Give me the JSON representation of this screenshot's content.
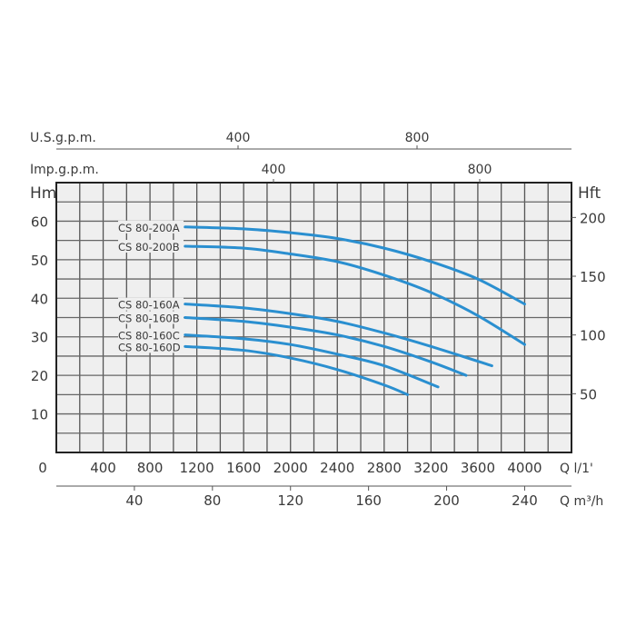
{
  "chart_data": {
    "type": "line",
    "title": "",
    "xlabel": "Q l/1'",
    "ylabel": "Hm",
    "y2label": "Hft",
    "xlim": [
      0,
      4400
    ],
    "ylim": [
      0,
      70
    ],
    "grid": true,
    "x_ticks": [
      0,
      400,
      800,
      1200,
      1600,
      2000,
      2400,
      2800,
      3200,
      3600,
      4000
    ],
    "x_tick_labels": [
      "0",
      "400",
      "800",
      "1200",
      "1600",
      "2000",
      "2400",
      "2800",
      "3200",
      "3600",
      "4000"
    ],
    "y_ticks": [
      10,
      20,
      30,
      40,
      50,
      60
    ],
    "y_tick_labels": [
      "10",
      "20",
      "30",
      "40",
      "50",
      "60"
    ],
    "secondary_axes": {
      "us_gpm": {
        "label": "U.S.g.p.m.",
        "ticks": [
          400,
          800
        ],
        "tick_labels": [
          "400",
          "800"
        ]
      },
      "imp_gpm": {
        "label": "Imp.g.p.m.",
        "ticks": [
          400,
          800
        ],
        "tick_labels": [
          "400",
          "800"
        ]
      },
      "m3h": {
        "label": "Q m³/h",
        "ticks": [
          40,
          80,
          120,
          160,
          200,
          240
        ],
        "tick_labels": [
          "40",
          "80",
          "120",
          "160",
          "200",
          "240"
        ]
      },
      "hft": {
        "label": "Hft",
        "ticks": [
          50,
          100,
          150,
          200
        ],
        "tick_labels": [
          "50",
          "100",
          "150",
          "200"
        ]
      }
    },
    "series": [
      {
        "name": "CS 80-200A",
        "x": [
          1100,
          1600,
          2000,
          2400,
          2800,
          3200,
          3600,
          4000
        ],
        "y": [
          58.5,
          58,
          57,
          55.5,
          53,
          49.5,
          45,
          38.5
        ]
      },
      {
        "name": "CS 80-200B",
        "x": [
          1100,
          1600,
          2000,
          2400,
          2800,
          3200,
          3600,
          4000
        ],
        "y": [
          53.5,
          53,
          51.5,
          49.5,
          46,
          41.5,
          35.5,
          28
        ]
      },
      {
        "name": "CS 80-160A",
        "x": [
          1100,
          1600,
          2000,
          2400,
          2800,
          3200,
          3720
        ],
        "y": [
          38.5,
          37.5,
          36,
          34,
          31,
          27.5,
          22.5
        ]
      },
      {
        "name": "CS 80-160B",
        "x": [
          1100,
          1600,
          2000,
          2400,
          2800,
          3200,
          3500
        ],
        "y": [
          35,
          34,
          32.5,
          30.5,
          27.5,
          23.5,
          20
        ]
      },
      {
        "name": "CS 80-160C",
        "x": [
          1100,
          1600,
          2000,
          2400,
          2800,
          3260
        ],
        "y": [
          30.5,
          29.5,
          28,
          25.5,
          22.5,
          17
        ]
      },
      {
        "name": "CS 80-160D",
        "x": [
          1100,
          1600,
          2000,
          2400,
          2800,
          3000
        ],
        "y": [
          27.5,
          26.5,
          24.5,
          21.5,
          17.5,
          15
        ]
      }
    ],
    "legend_position": "inline-left",
    "line_color": "#2a8fd0"
  },
  "labels": {
    "us_gpm": "U.S.g.p.m.",
    "imp_gpm": "Imp.g.p.m.",
    "hm": "Hm",
    "hft": "Hft",
    "q_lmin": "Q l/1'",
    "q_m3h": "Q m³/h"
  }
}
